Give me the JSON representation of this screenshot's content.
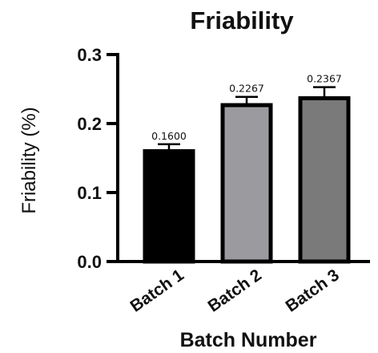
{
  "chart_data": {
    "type": "bar",
    "title": "Friability",
    "xlabel": "Batch Number",
    "ylabel": "Friability (%)",
    "ylim": [
      0,
      0.3
    ],
    "yticks": [
      "0.0",
      "0.1",
      "0.2",
      "0.3"
    ],
    "categories": [
      "Batch 1",
      "Batch 2",
      "Batch 3"
    ],
    "values": [
      0.16,
      0.2267,
      0.2367
    ],
    "errors": [
      0.01,
      0.012,
      0.016
    ],
    "data_labels": [
      "0.1600",
      "0.2267",
      "0.2367"
    ],
    "bar_colors": [
      "#000000",
      "#9b9b9f",
      "#7a7a7a"
    ],
    "grid": false,
    "legend": "none"
  }
}
